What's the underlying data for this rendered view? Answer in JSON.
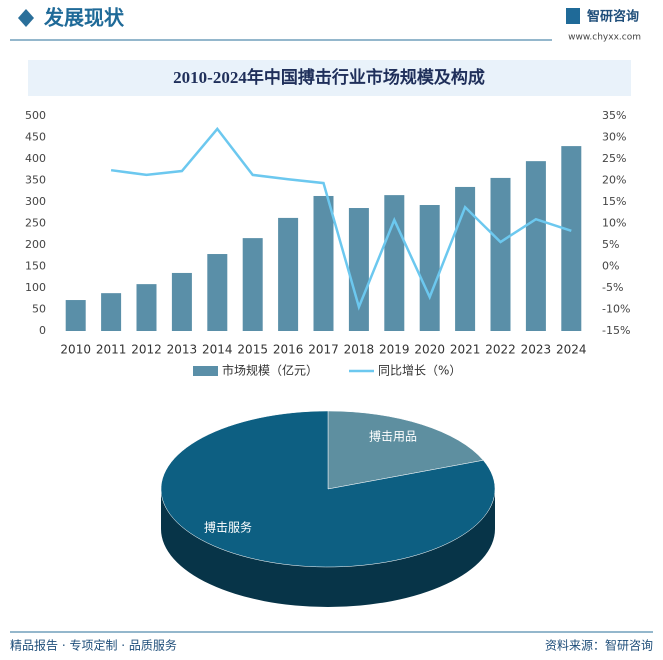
{
  "header": {
    "title": "发展现状",
    "logo": "智研咨询",
    "url": "www.chyxx.com"
  },
  "chart_data": [
    {
      "type": "bar-line",
      "title": "2010-2024年中国搏击行业市场规模及构成",
      "categories": [
        "2010",
        "2011",
        "2012",
        "2013",
        "2014",
        "2015",
        "2016",
        "2017",
        "2018",
        "2019",
        "2020",
        "2021",
        "2022",
        "2023",
        "2024"
      ],
      "series": [
        {
          "name": "市场规模（亿元）",
          "type": "bar",
          "color": "#5a8fa8",
          "values": [
            72,
            88,
            109,
            135,
            179,
            216,
            263,
            314,
            286,
            316,
            293,
            335,
            356,
            395,
            430
          ]
        },
        {
          "name": "同比增长（%）",
          "type": "line",
          "axis": "y2",
          "color": "#6cc8ef",
          "values": [
            null,
            22.4,
            21.3,
            22.2,
            32,
            21.3,
            20.3,
            19.4,
            -9.4,
            10.8,
            -7.1,
            13.8,
            5.7,
            11,
            8.3
          ]
        }
      ],
      "ylim": [
        0,
        500
      ],
      "yticks": [
        0,
        50,
        100,
        150,
        200,
        250,
        300,
        350,
        400,
        450,
        500
      ],
      "y2lim": [
        -15,
        35
      ],
      "y2ticks": [
        {
          "value": -15,
          "label": "-15%"
        },
        {
          "value": -10,
          "label": "-10%"
        },
        {
          "value": -5,
          "label": "-5%"
        },
        {
          "value": 0,
          "label": "0%"
        },
        {
          "value": 5,
          "label": "5%"
        },
        {
          "value": 10,
          "label": "10%"
        },
        {
          "value": 15,
          "label": "15%"
        },
        {
          "value": 20,
          "label": "20%"
        },
        {
          "value": 25,
          "label": "25%"
        },
        {
          "value": 30,
          "label": "30%"
        },
        {
          "value": 35,
          "label": "35%"
        }
      ],
      "legend": "bottom"
    },
    {
      "type": "pie",
      "categories": [
        "搏击用品",
        "搏击服务"
      ],
      "values": [
        19,
        81
      ],
      "colors": [
        "#5e8fa0",
        "#0d5f82"
      ]
    }
  ],
  "footer": {
    "left": "精品报告 · 专项定制 · 品质服务",
    "right": "资料来源：智研咨询"
  }
}
